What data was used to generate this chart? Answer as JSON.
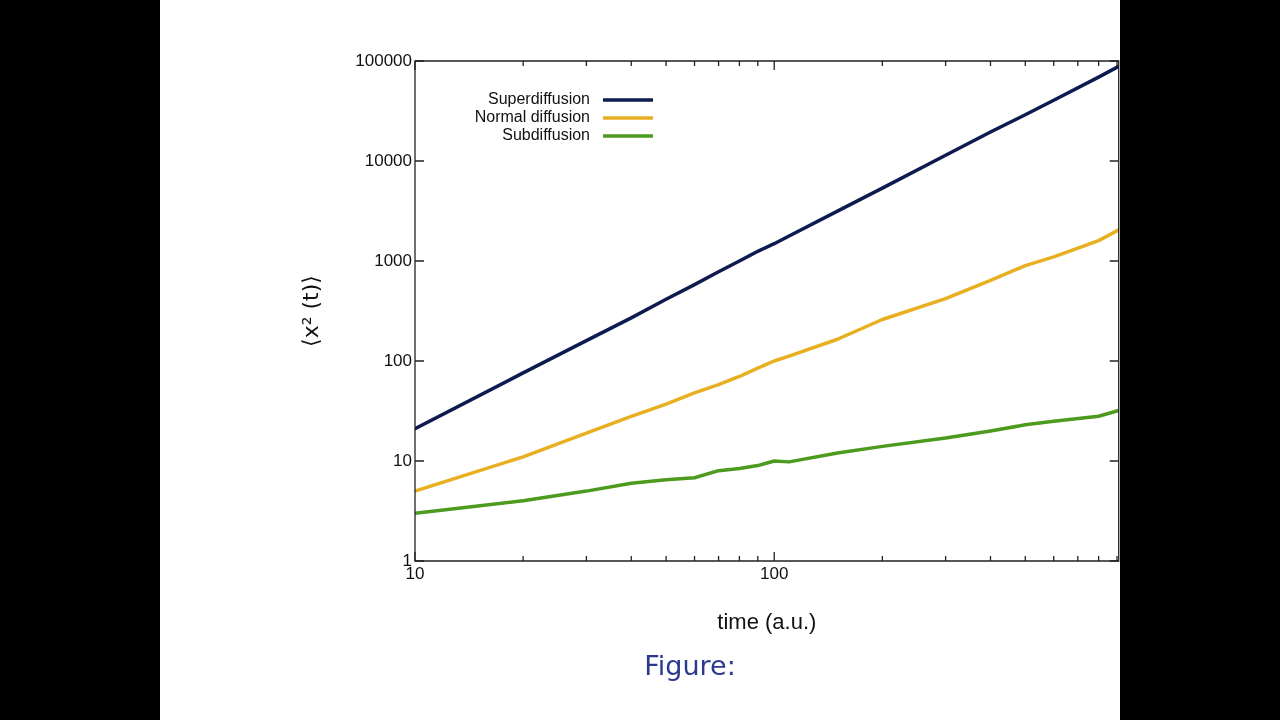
{
  "chart_data": {
    "type": "line",
    "xlabel": "time (a.u.)",
    "ylabel": "⟨x² (t)⟩",
    "log": "xy",
    "legend": "top left",
    "marker": "none",
    "line_style": "solid",
    "grid": false,
    "xlim": [
      10,
      910
    ],
    "ylim": [
      1,
      100000
    ],
    "xticks": [
      10,
      {
        "value": 20,
        "label": null
      },
      {
        "value": 30,
        "label": null
      },
      {
        "value": 40,
        "label": null
      },
      {
        "value": 50,
        "label": null
      },
      {
        "value": 60,
        "label": null
      },
      {
        "value": 70,
        "label": null
      },
      {
        "value": 80,
        "label": null
      },
      {
        "value": 90,
        "label": null
      },
      100,
      {
        "value": 200,
        "label": null
      },
      {
        "value": 300,
        "label": null
      },
      {
        "value": 400,
        "label": null
      },
      {
        "value": 500,
        "label": null
      },
      {
        "value": 600,
        "label": null
      },
      {
        "value": 700,
        "label": null
      },
      {
        "value": 800,
        "label": null
      },
      {
        "value": 900,
        "label": null
      }
    ],
    "yticks": [
      1,
      10,
      100,
      1000,
      10000,
      100000
    ],
    "x": [
      10,
      20,
      30,
      40,
      50,
      60,
      70,
      80,
      90,
      100,
      110,
      150,
      200,
      300,
      400,
      500,
      600,
      800,
      910
    ],
    "series": [
      {
        "name": "Superdiffusion",
        "color": "#0d1b4f",
        "values": [
          21,
          76,
          160,
          270,
          414,
          580,
          780,
          1000,
          1250,
          1490,
          1780,
          3150,
          5360,
          11400,
          19500,
          29000,
          40500,
          69000,
          88400
        ]
      },
      {
        "name": "Normal diffusion",
        "color": "#e8b021",
        "values": [
          5,
          11,
          19,
          28,
          37,
          48,
          58,
          70,
          85,
          100,
          112,
          165,
          260,
          420,
          640,
          900,
          1100,
          1600,
          2050
        ]
      },
      {
        "name": "Subdiffusion",
        "color": "#4c9a1e",
        "values": [
          3,
          4,
          5,
          6,
          6.5,
          6.8,
          8,
          8.4,
          9,
          10,
          9.8,
          12,
          14,
          17,
          20,
          23,
          25,
          28,
          32
        ]
      }
    ],
    "annotations": [
      "Figure:"
    ]
  }
}
